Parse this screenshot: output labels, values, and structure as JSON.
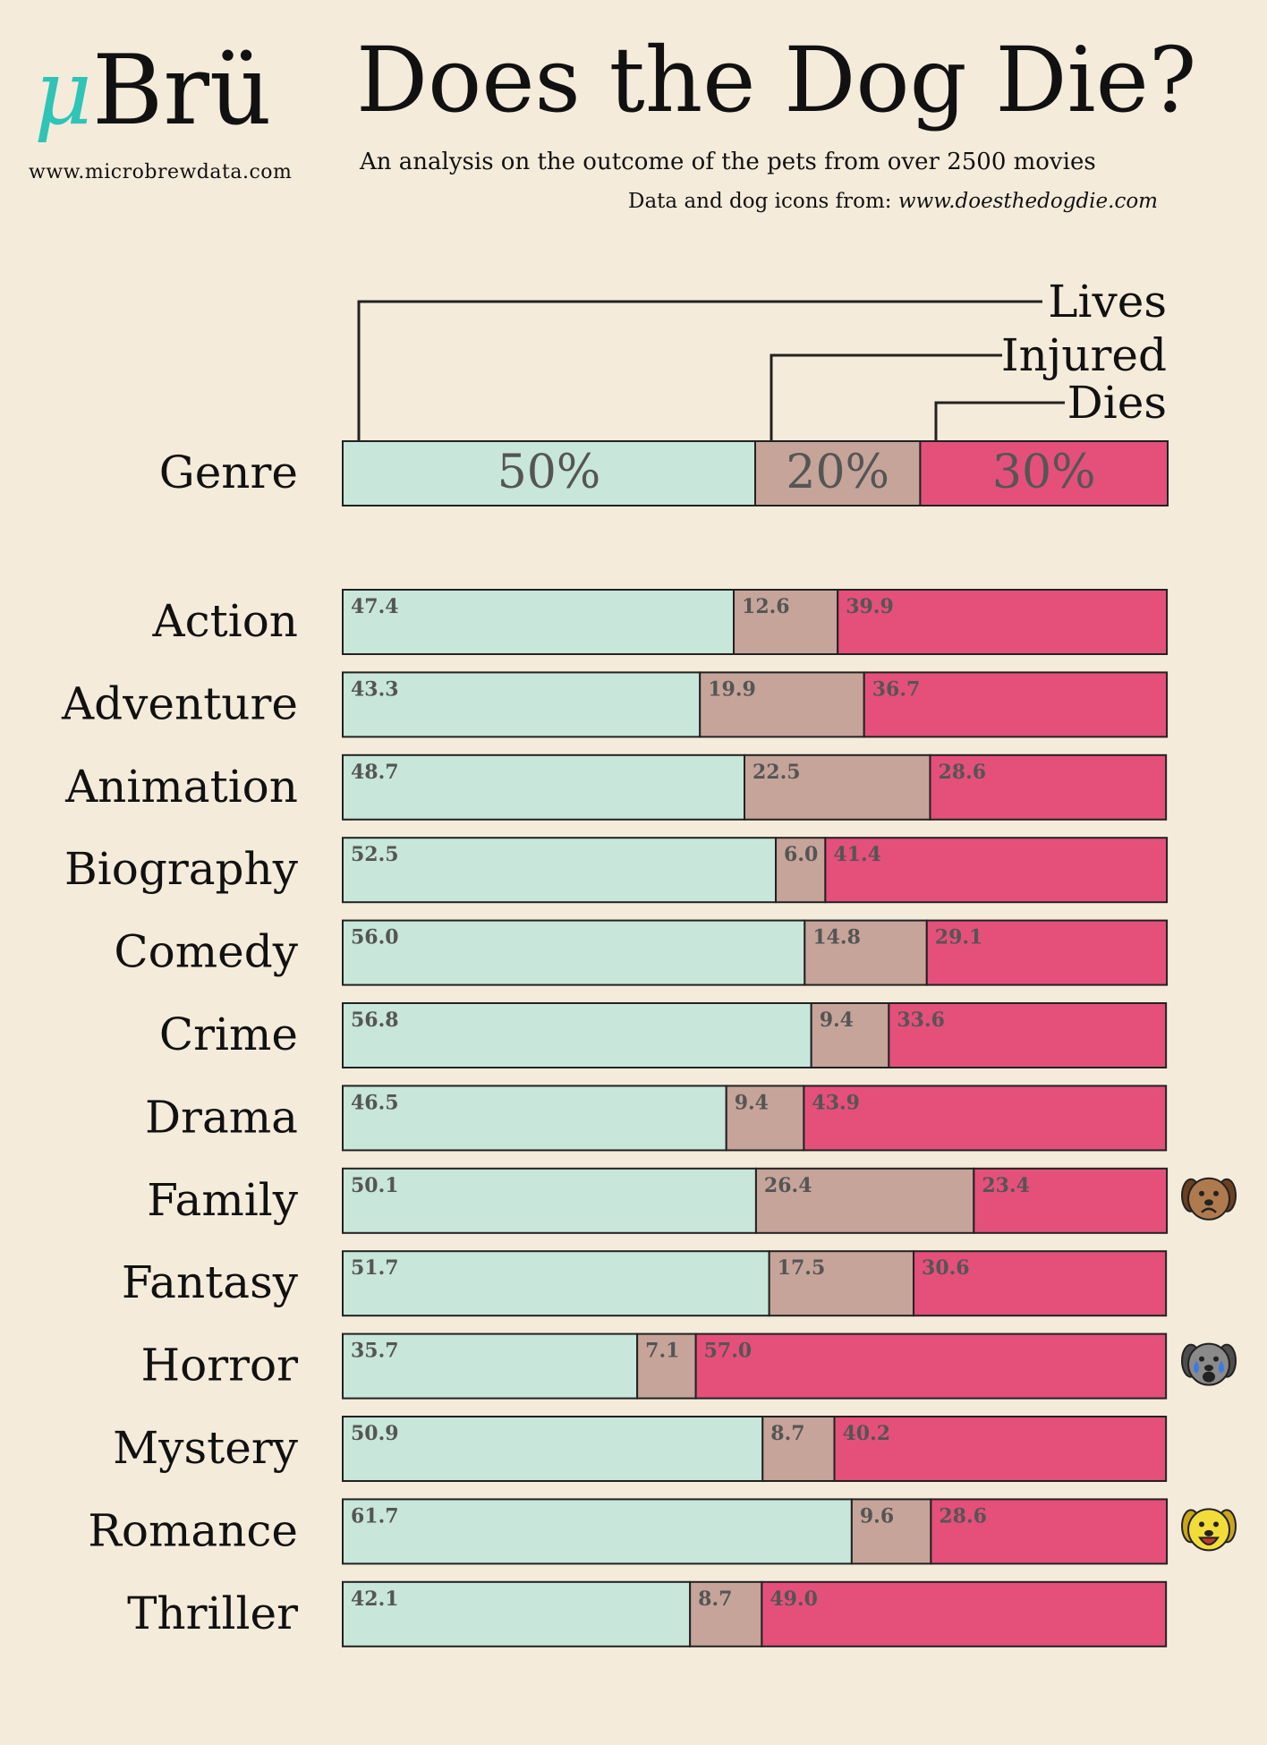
{
  "logo": {
    "mu": "μ",
    "name": "Brü",
    "url": "www.microbrewdata.com"
  },
  "title": "Does the Dog Die?",
  "subtitle": "An analysis on the outcome of the pets from over 2500 movies",
  "source": {
    "prefix": "Data and dog icons from:",
    "url": "www.doesthedogdie.com"
  },
  "colors": {
    "lives": "#c8e6da",
    "injured": "#c6a49a",
    "dies": "#e4507a",
    "background": "#f5ebdb"
  },
  "legend": {
    "header_label": "Genre",
    "items": [
      {
        "name": "Lives",
        "value": 50,
        "label": "50%"
      },
      {
        "name": "Injured",
        "value": 20,
        "label": "20%"
      },
      {
        "name": "Dies",
        "value": 30,
        "label": "30%"
      }
    ]
  },
  "chart_data": {
    "type": "bar",
    "orientation": "horizontal",
    "stacked": true,
    "normalized": true,
    "xlim": [
      0,
      100
    ],
    "legend_placement": "top",
    "categories": [
      "Action",
      "Adventure",
      "Animation",
      "Biography",
      "Comedy",
      "Crime",
      "Drama",
      "Family",
      "Fantasy",
      "Horror",
      "Mystery",
      "Romance",
      "Thriller"
    ],
    "series": [
      {
        "name": "Lives",
        "values": [
          47.4,
          43.3,
          48.7,
          52.5,
          56.0,
          56.8,
          46.5,
          50.1,
          51.7,
          35.7,
          50.9,
          61.7,
          42.1
        ]
      },
      {
        "name": "Injured",
        "values": [
          12.6,
          19.9,
          22.5,
          6.0,
          14.8,
          9.4,
          9.4,
          26.4,
          17.5,
          7.1,
          8.7,
          9.6,
          8.7
        ]
      },
      {
        "name": "Dies",
        "values": [
          39.9,
          36.7,
          28.6,
          41.4,
          29.1,
          33.6,
          43.9,
          23.4,
          30.6,
          57.0,
          40.2,
          28.6,
          49.0
        ]
      }
    ],
    "icons": [
      {
        "category": "Family",
        "icon": "sad-dog-icon"
      },
      {
        "category": "Horror",
        "icon": "crying-dog-icon"
      },
      {
        "category": "Romance",
        "icon": "happy-dog-icon"
      }
    ]
  }
}
